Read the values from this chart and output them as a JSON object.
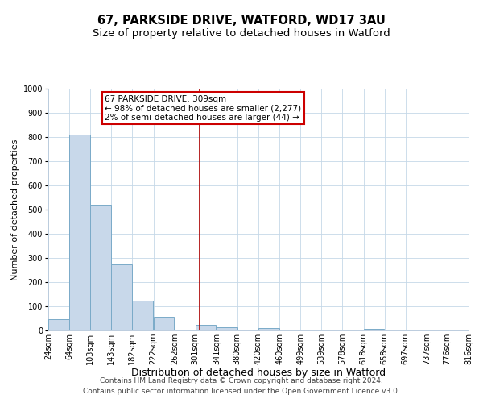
{
  "title": "67, PARKSIDE DRIVE, WATFORD, WD17 3AU",
  "subtitle": "Size of property relative to detached houses in Watford",
  "xlabel": "Distribution of detached houses by size in Watford",
  "ylabel": "Number of detached properties",
  "bin_labels": [
    "24sqm",
    "64sqm",
    "103sqm",
    "143sqm",
    "182sqm",
    "222sqm",
    "262sqm",
    "301sqm",
    "341sqm",
    "380sqm",
    "420sqm",
    "460sqm",
    "499sqm",
    "539sqm",
    "578sqm",
    "618sqm",
    "658sqm",
    "697sqm",
    "737sqm",
    "776sqm",
    "816sqm"
  ],
  "bar_values": [
    46,
    810,
    520,
    275,
    125,
    57,
    0,
    22,
    12,
    0,
    10,
    0,
    0,
    0,
    0,
    8,
    0,
    0,
    0,
    0
  ],
  "bar_left_edges": [
    24,
    64,
    103,
    143,
    182,
    222,
    262,
    301,
    341,
    380,
    420,
    460,
    499,
    539,
    578,
    618,
    658,
    697,
    737,
    776
  ],
  "bin_width": 39,
  "property_line_x": 309,
  "ylim": [
    0,
    1000
  ],
  "xlim": [
    24,
    816
  ],
  "bar_color": "#c8d8ea",
  "bar_edge_color": "#7aaac8",
  "vline_color": "#aa0000",
  "annotation_text": "67 PARKSIDE DRIVE: 309sqm\n← 98% of detached houses are smaller (2,277)\n2% of semi-detached houses are larger (44) →",
  "annotation_box_facecolor": "#ffffff",
  "annotation_box_edgecolor": "#cc0000",
  "footnote1": "Contains HM Land Registry data © Crown copyright and database right 2024.",
  "footnote2": "Contains public sector information licensed under the Open Government Licence v3.0.",
  "background_color": "#ffffff",
  "grid_color": "#c5d8e8",
  "title_fontsize": 10.5,
  "subtitle_fontsize": 9.5,
  "xlabel_fontsize": 9,
  "ylabel_fontsize": 8,
  "tick_fontsize": 7,
  "annotation_fontsize": 7.5,
  "footnote_fontsize": 6.5
}
